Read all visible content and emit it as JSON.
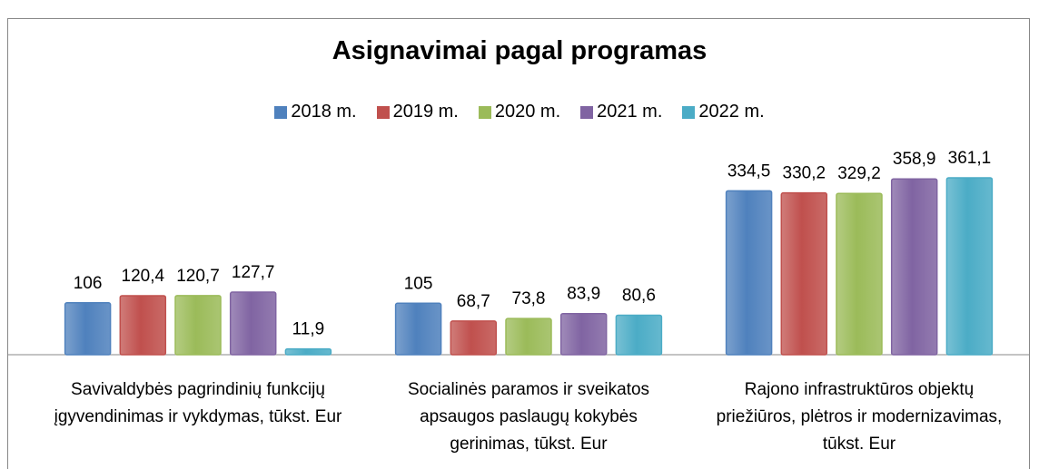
{
  "chart_data": {
    "type": "bar",
    "title": "Asignavimai pagal programas",
    "categories": [
      "Savivaldybės  pagrindinių funkcijų įgyvendinimas ir vykdymas, tūkst. Eur",
      "Socialinės paramos ir sveikatos apsaugos paslaugų kokybės gerinimas, tūkst. Eur",
      "Rajono infrastruktūros objektų priežiūros, plėtros ir modernizavimas, tūkst. Eur"
    ],
    "series": [
      {
        "name": "2018 m.",
        "color": "#4f81bd",
        "values": [
          106,
          105,
          334.5
        ],
        "value_labels": [
          "106",
          "105",
          "334,5"
        ]
      },
      {
        "name": "2019 m.",
        "color": "#c0504d",
        "values": [
          120.4,
          68.7,
          330.2
        ],
        "value_labels": [
          "120,4",
          "68,7",
          "330,2"
        ]
      },
      {
        "name": "2020 m.",
        "color": "#9bbb59",
        "values": [
          120.7,
          73.8,
          329.2
        ],
        "value_labels": [
          "120,7",
          "73,8",
          "329,2"
        ]
      },
      {
        "name": "2021 m.",
        "color": "#8064a2",
        "values": [
          127.7,
          83.9,
          358.9
        ],
        "value_labels": [
          "127,7",
          "83,9",
          "358,9"
        ]
      },
      {
        "name": "2022 m.",
        "color": "#4bacc6",
        "values": [
          11.9,
          80.6,
          361.1
        ],
        "value_labels": [
          "11,9",
          "80,6",
          "361,1"
        ]
      }
    ],
    "legend": "top"
  }
}
